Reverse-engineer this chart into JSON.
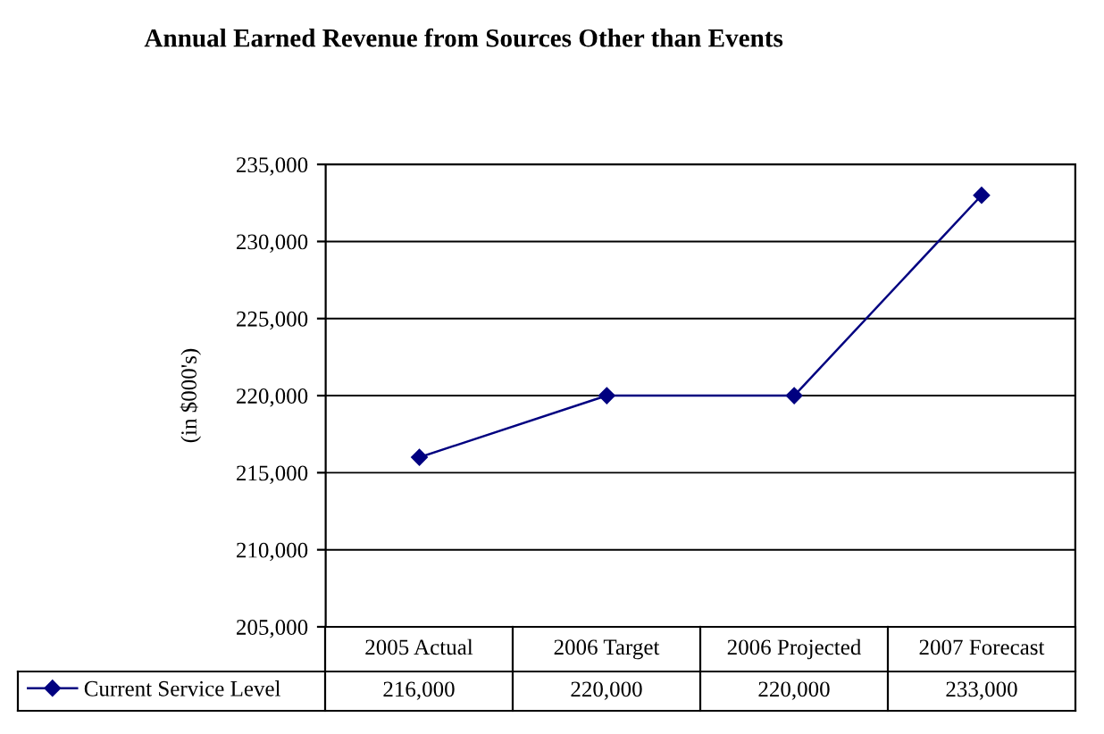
{
  "chart_data": {
    "type": "line",
    "title": "Annual Earned Revenue from Sources Other than Events",
    "ylabel": "(in $000's)",
    "categories": [
      "2005 Actual",
      "2006 Target",
      "2006 Projected",
      "2007 Forecast"
    ],
    "series": [
      {
        "name": "Current Service Level",
        "color": "#000080",
        "values": [
          216000,
          220000,
          220000,
          233000
        ],
        "value_labels": [
          "216,000",
          "220,000",
          "220,000",
          "233,000"
        ]
      }
    ],
    "ylim": [
      205000,
      235000
    ],
    "yticks": [
      {
        "value": 205000,
        "label": "205,000"
      },
      {
        "value": 210000,
        "label": "210,000"
      },
      {
        "value": 215000,
        "label": "215,000"
      },
      {
        "value": 220000,
        "label": "220,000"
      },
      {
        "value": 225000,
        "label": "225,000"
      },
      {
        "value": 230000,
        "label": "230,000"
      },
      {
        "value": 235000,
        "label": "235,000"
      }
    ],
    "grid": "y",
    "marker": "diamond",
    "line_style": "solid",
    "legend": "bottom"
  }
}
